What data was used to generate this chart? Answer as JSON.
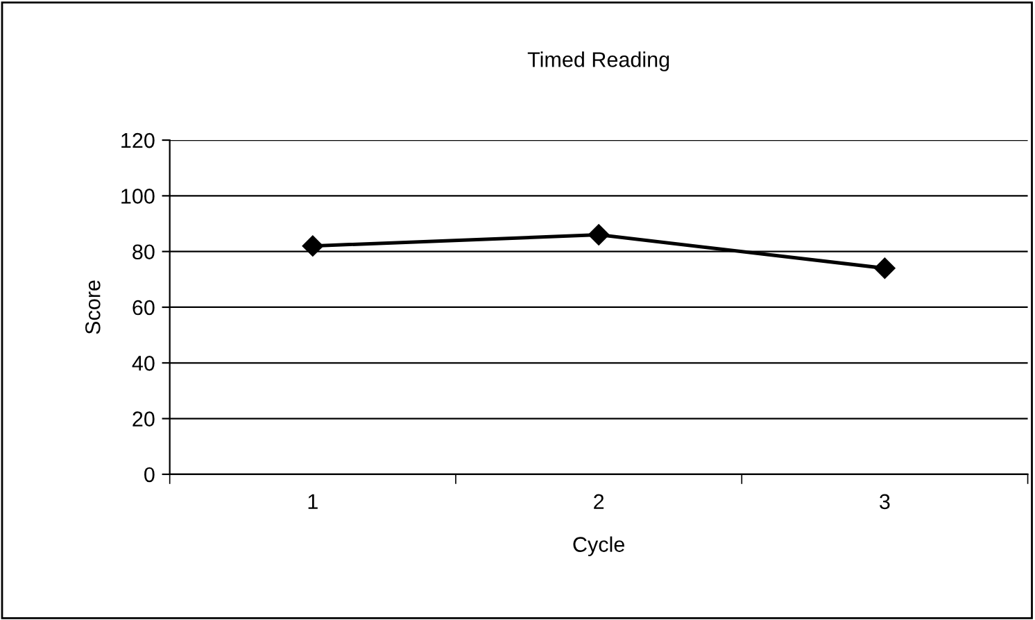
{
  "chart_data": {
    "type": "line",
    "title": "Timed Reading",
    "xlabel": "Cycle",
    "ylabel": "Score",
    "categories": [
      "1",
      "2",
      "3"
    ],
    "series": [
      {
        "color": "#000000",
        "values": [
          82,
          86,
          74
        ]
      }
    ],
    "ylim": [
      0,
      120
    ],
    "yticks": [
      0,
      20,
      40,
      60,
      80,
      100,
      120
    ],
    "grid": "y",
    "legend": false,
    "marker": "diamond",
    "line_style": "solid"
  }
}
